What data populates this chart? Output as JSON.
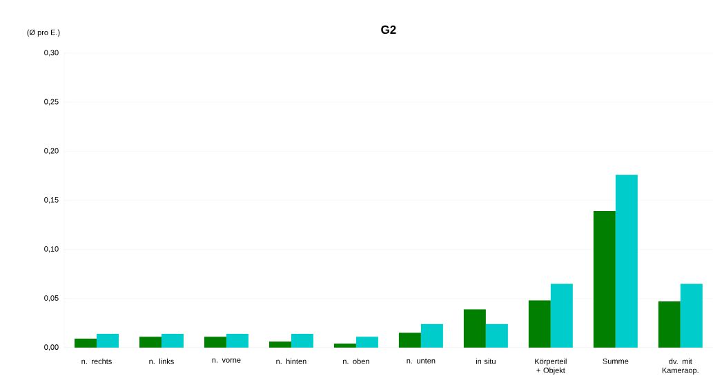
{
  "chart_data": {
    "type": "bar",
    "title": "G2",
    "ylabel": "(Ø pro E.)",
    "categories": [
      "n. rechts",
      "n. links",
      "n. vorne",
      "n. hinten",
      "n. oben",
      "n. unten",
      "in situ",
      "Körperteil + Objekt",
      "Summe",
      "dv. mit Kameraop."
    ],
    "series": [
      {
        "color": "#007f00",
        "values": [
          0.009,
          0.011,
          0.011,
          0.006,
          0.004,
          0.015,
          0.039,
          0.048,
          0.139,
          0.047
        ]
      },
      {
        "color": "#00cccc",
        "values": [
          0.014,
          0.014,
          0.014,
          0.014,
          0.011,
          0.024,
          0.024,
          0.065,
          0.176,
          0.065
        ]
      }
    ],
    "ylim": [
      0,
      0.3
    ],
    "yticks": [
      {
        "value": 0,
        "label": "0,00"
      },
      {
        "value": 0.05,
        "label": "0,05"
      },
      {
        "value": 0.1,
        "label": "0,10"
      },
      {
        "value": 0.15,
        "label": "0,15"
      },
      {
        "value": 0.2,
        "label": "0,20"
      },
      {
        "value": 0.25,
        "label": "0,25"
      },
      {
        "value": 0.3,
        "label": "0,30"
      }
    ],
    "grid": "y"
  }
}
